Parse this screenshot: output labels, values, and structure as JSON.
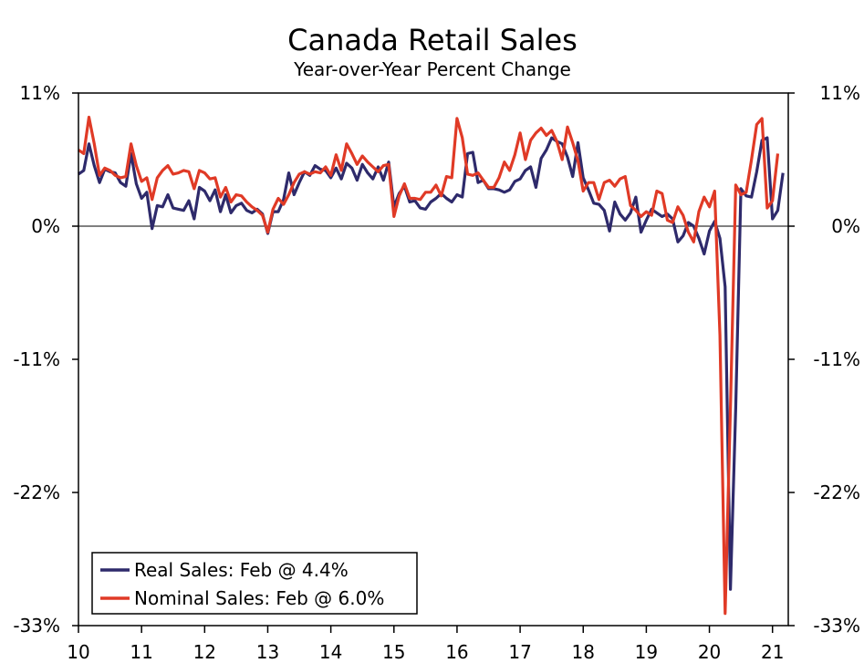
{
  "chart_data": {
    "type": "line",
    "title": "Canada Retail Sales",
    "subtitle": "Year-over-Year Percent Change",
    "xlabel": "",
    "ylabel": "",
    "ylim": [
      -33,
      11
    ],
    "y_ticks": [
      11,
      0,
      -11,
      -22,
      -33
    ],
    "y_tick_labels": [
      "11%",
      "0%",
      "-11%",
      "-22%",
      "-33%"
    ],
    "xlim": [
      2010.0,
      2021.25
    ],
    "x_ticks": [
      2010,
      2011,
      2012,
      2013,
      2014,
      2015,
      2016,
      2017,
      2018,
      2019,
      2020,
      2021
    ],
    "x_tick_labels": [
      "10",
      "11",
      "12",
      "13",
      "14",
      "15",
      "16",
      "17",
      "18",
      "19",
      "20",
      "21"
    ],
    "legend_position": "bottom-left",
    "series": [
      {
        "name": "Real Sales",
        "legend_label": "Real Sales: Feb @ 4.4%",
        "color": "#2e2a6b",
        "start": "2010-01",
        "values": [
          4.3,
          4.6,
          6.8,
          5.0,
          3.6,
          4.7,
          4.5,
          4.4,
          3.6,
          3.3,
          6.0,
          3.5,
          2.3,
          2.8,
          -0.2,
          1.7,
          1.6,
          2.6,
          1.5,
          1.4,
          1.3,
          2.1,
          0.6,
          3.2,
          2.9,
          2.1,
          3.0,
          1.2,
          2.6,
          1.1,
          1.7,
          1.9,
          1.3,
          1.1,
          1.4,
          1.0,
          -0.6,
          1.2,
          1.2,
          2.2,
          4.4,
          2.6,
          3.6,
          4.5,
          4.2,
          5.0,
          4.7,
          4.6,
          4.0,
          4.8,
          3.9,
          5.2,
          4.8,
          3.8,
          5.1,
          4.4,
          3.9,
          4.9,
          3.8,
          5.3,
          1.6,
          2.7,
          3.3,
          2.0,
          2.1,
          1.5,
          1.4,
          2.0,
          2.3,
          2.7,
          2.3,
          2.0,
          2.6,
          2.4,
          6.0,
          6.1,
          3.6,
          3.8,
          3.1,
          3.1,
          3.0,
          2.8,
          3.0,
          3.7,
          3.9,
          4.6,
          4.9,
          3.2,
          5.6,
          6.3,
          7.3,
          7.0,
          6.8,
          5.7,
          4.1,
          6.9,
          4.0,
          3.0,
          1.9,
          1.8,
          1.3,
          -0.4,
          2.0,
          1.0,
          0.5,
          1.1,
          2.4,
          -0.5,
          0.5,
          1.4,
          1.1,
          0.8,
          1.0,
          0.6,
          -1.3,
          -0.8,
          0.3,
          0.0,
          -1.0,
          -2.3,
          -0.4,
          0.4,
          -1.0,
          -5.0,
          -30.0,
          -15.0,
          3.1,
          2.5,
          2.4,
          4.5,
          7.1,
          7.3,
          0.6,
          1.3,
          4.4
        ]
      },
      {
        "name": "Nominal Sales",
        "legend_label": "Nominal Sales: Feb @ 6.0%",
        "color": "#e03a26",
        "start": "2010-01",
        "values": [
          6.3,
          6.0,
          9.0,
          6.8,
          4.2,
          4.8,
          4.6,
          4.2,
          4.0,
          4.1,
          6.8,
          5.0,
          3.7,
          4.0,
          2.2,
          4.0,
          4.6,
          5.0,
          4.3,
          4.4,
          4.6,
          4.5,
          3.1,
          4.6,
          4.4,
          3.9,
          4.0,
          2.4,
          3.2,
          2.0,
          2.6,
          2.5,
          2.0,
          1.6,
          1.3,
          0.9,
          -0.5,
          1.4,
          2.3,
          1.8,
          2.6,
          3.6,
          4.3,
          4.5,
          4.3,
          4.5,
          4.4,
          4.9,
          4.2,
          5.9,
          4.6,
          6.8,
          6.0,
          5.1,
          5.8,
          5.3,
          4.9,
          4.5,
          5.0,
          5.1,
          0.8,
          2.5,
          3.5,
          2.3,
          2.3,
          2.2,
          2.8,
          2.8,
          3.4,
          2.5,
          4.1,
          4.0,
          8.9,
          7.3,
          4.3,
          4.2,
          4.4,
          3.8,
          3.2,
          3.2,
          4.0,
          5.3,
          4.6,
          5.9,
          7.7,
          5.5,
          7.1,
          7.7,
          8.1,
          7.5,
          7.9,
          7.0,
          5.5,
          8.2,
          6.9,
          5.4,
          2.9,
          3.6,
          3.6,
          2.2,
          3.6,
          3.8,
          3.3,
          3.9,
          4.1,
          1.7,
          1.3,
          0.8,
          1.2,
          0.9,
          2.9,
          2.7,
          0.5,
          0.3,
          1.6,
          0.9,
          -0.5,
          -1.3,
          1.2,
          2.4,
          1.6,
          2.9,
          -9.0,
          -32.0,
          -15.0,
          3.4,
          2.6,
          2.8,
          5.5,
          8.4,
          8.9,
          1.5,
          2.1,
          6.0
        ]
      }
    ]
  }
}
